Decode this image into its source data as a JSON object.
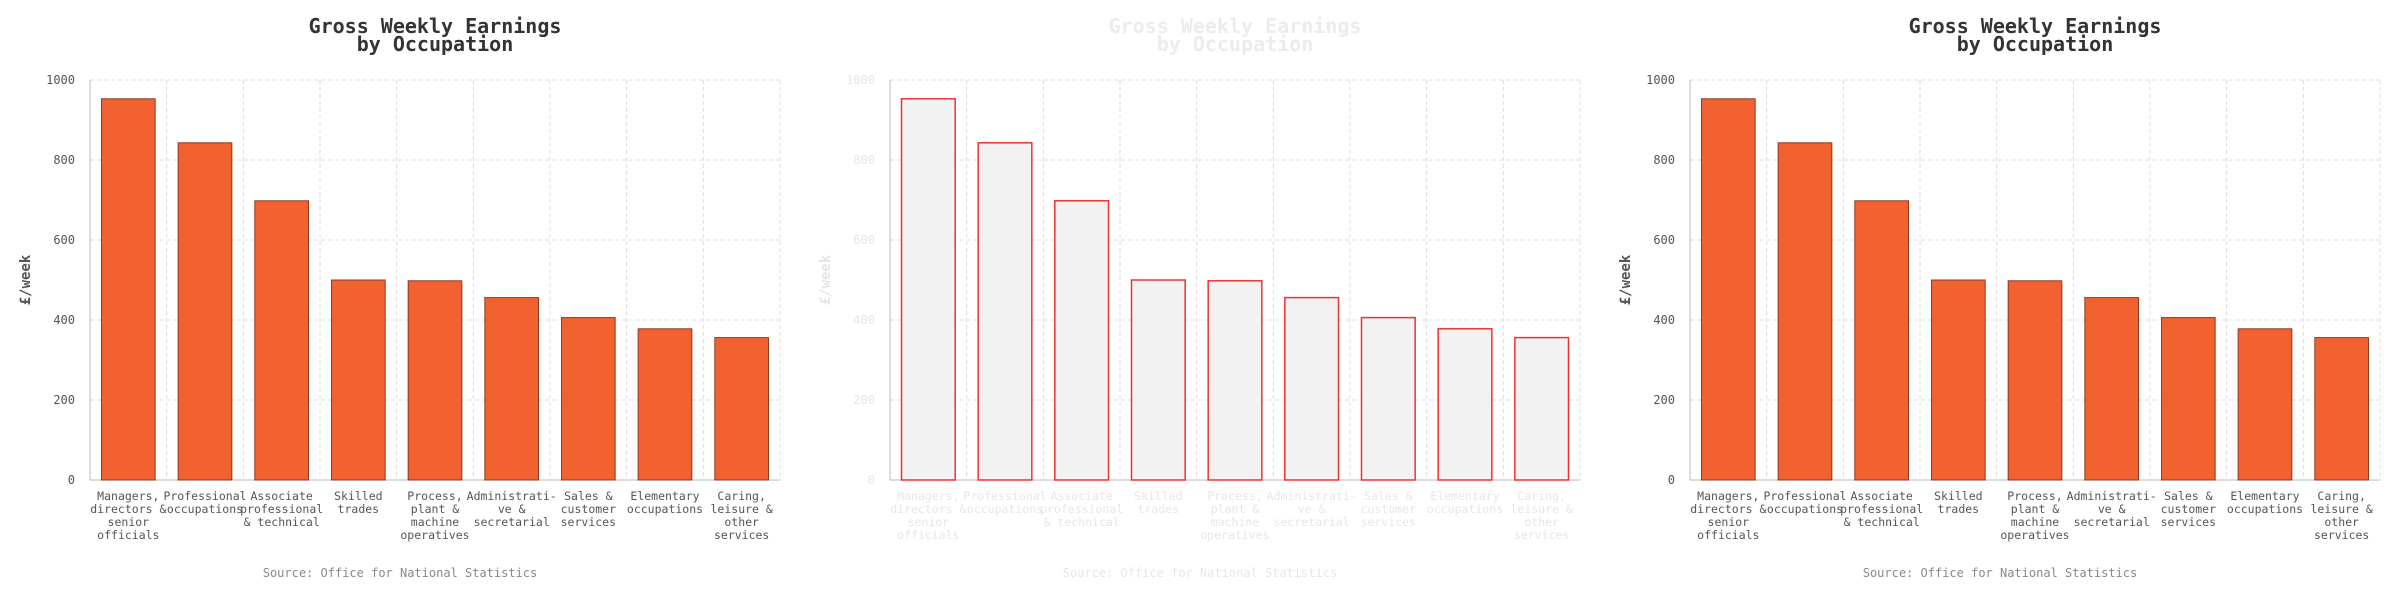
{
  "colors": {
    "bar_fill": "#f26130",
    "bar_stroke": "#8c3a1e",
    "ghost_bar_fill": "#f2f2f2",
    "ghost_bar_stroke": "#ee3333",
    "grid": "#dddddd",
    "axis": "#bbbbbb"
  },
  "panels": [
    {
      "id": "left",
      "style": "solid"
    },
    {
      "id": "middle",
      "style": "ghost"
    },
    {
      "id": "right",
      "style": "solid"
    }
  ],
  "chart_data": {
    "type": "bar",
    "title_lines": [
      "Gross Weekly Earnings",
      "by Occupation"
    ],
    "ylabel": "£/week",
    "ylim": [
      0,
      1000
    ],
    "yticks": [
      0,
      200,
      400,
      600,
      800,
      1000
    ],
    "grid": true,
    "source": "Source: Office for National Statistics",
    "categories": [
      [
        "Managers,",
        "directors &",
        "senior",
        "officials"
      ],
      [
        "Professional",
        "occupations"
      ],
      [
        "Associate",
        "professional",
        "& technical"
      ],
      [
        "Skilled",
        "trades"
      ],
      [
        "Process,",
        "plant &",
        "machine",
        "operatives"
      ],
      [
        "Administrati-",
        "ve &",
        "secretarial"
      ],
      [
        "Sales &",
        "customer",
        "services"
      ],
      [
        "Elementary",
        "occupations"
      ],
      [
        "Caring,",
        "leisure &",
        "other",
        "services"
      ]
    ],
    "values": [
      953,
      843,
      698,
      500,
      498,
      456,
      406,
      378,
      356
    ]
  }
}
